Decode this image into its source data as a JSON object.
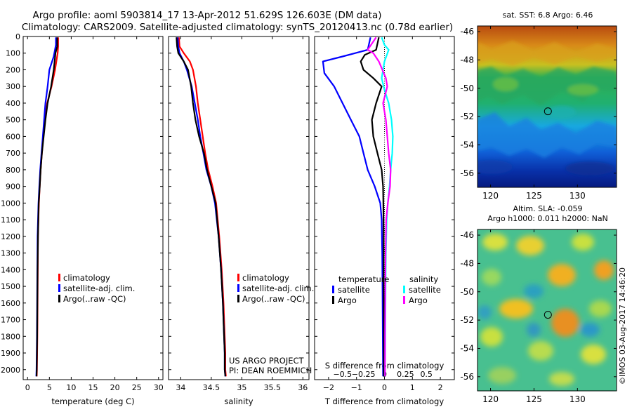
{
  "header": {
    "line1": "Argo profile: aoml 5903814_17 13-Apr-2012 51.629S 126.603E (DM data)",
    "line2": "Climatology: CARS2009. Satellite-adjusted climatology: synTS_20120413.nc (0.78d earlier)"
  },
  "colors": {
    "climatology": "#ff0000",
    "satellite": "#0000ff",
    "argo": "#000000",
    "sal_satellite": "#00ffff",
    "sal_argo": "#ff00ff"
  },
  "depth_axis": {
    "ticks": [
      0,
      100,
      200,
      300,
      400,
      500,
      600,
      700,
      800,
      900,
      1000,
      1100,
      1200,
      1300,
      1400,
      1500,
      1600,
      1700,
      1800,
      1900,
      2000
    ]
  },
  "chart_data": [
    {
      "type": "line",
      "id": "temperature",
      "xlabel": "temperature (deg C)",
      "xlim": [
        -1,
        31
      ],
      "ylim": [
        0,
        2060
      ],
      "xticks": [
        0,
        5,
        10,
        15,
        20,
        25,
        30
      ],
      "xtick_labels": [
        "0",
        "5",
        "10",
        "15",
        "20",
        "25",
        "30"
      ],
      "legend": {
        "position": "lower-left",
        "entries": [
          "climatology",
          "satellite-adj. clim.",
          "Argo(..raw -QC)"
        ]
      },
      "series": [
        {
          "name": "climatology",
          "color": "#ff0000",
          "x": [
            7.0,
            7.0,
            6.9,
            6.3,
            5.5,
            4.5,
            4.0,
            3.6,
            3.3,
            3.0,
            2.8,
            2.6,
            2.4,
            2.35,
            2.3,
            2.25,
            2.2,
            2.15,
            2.1
          ],
          "y": [
            5,
            60,
            100,
            200,
            300,
            400,
            500,
            600,
            700,
            800,
            900,
            1000,
            1200,
            1400,
            1600,
            1800,
            1900,
            2000,
            2040
          ]
        },
        {
          "name": "satellite-adj. clim.",
          "color": "#0000ff",
          "x": [
            6.5,
            6.5,
            6.0,
            5.0,
            4.6,
            4.1,
            3.8,
            3.5,
            3.2,
            2.9,
            2.7,
            2.5,
            2.3,
            2.25,
            2.2,
            2.15,
            2.1,
            2.05,
            2.0
          ],
          "y": [
            5,
            50,
            120,
            200,
            300,
            400,
            500,
            600,
            700,
            800,
            900,
            1000,
            1200,
            1400,
            1600,
            1800,
            1900,
            2000,
            2040
          ]
        },
        {
          "name": "Argo(..raw -QC)",
          "color": "#000000",
          "x": [
            6.8,
            6.8,
            6.4,
            6.0,
            5.4,
            4.6,
            4.1,
            3.7,
            3.3,
            3.0,
            2.8,
            2.55,
            2.4,
            2.3,
            2.25,
            2.2,
            2.15,
            2.1,
            2.05
          ],
          "y": [
            5,
            60,
            100,
            200,
            300,
            400,
            500,
            600,
            700,
            800,
            900,
            1000,
            1200,
            1400,
            1600,
            1800,
            1900,
            2000,
            2040
          ]
        }
      ]
    },
    {
      "type": "line",
      "id": "salinity",
      "xlabel": "salinity",
      "xlim": [
        33.8,
        36.1
      ],
      "ylim": [
        0,
        2060
      ],
      "xticks": [
        34,
        34.5,
        35,
        35.5,
        36
      ],
      "xtick_labels": [
        "34",
        "34.5",
        "35",
        "35.5",
        "36"
      ],
      "legend": {
        "position": "lower-center",
        "entries": [
          "climatology",
          "satellite-adj. clim.",
          "Argo(..raw -QC)"
        ]
      },
      "series": [
        {
          "name": "climatology",
          "color": "#ff0000",
          "x": [
            33.97,
            33.98,
            34.05,
            34.15,
            34.2,
            34.25,
            34.28,
            34.32,
            34.36,
            34.4,
            34.45,
            34.52,
            34.58,
            34.63,
            34.67,
            34.7,
            34.72,
            34.73,
            34.73,
            34.74
          ],
          "y": [
            5,
            60,
            100,
            150,
            200,
            300,
            400,
            500,
            600,
            700,
            800,
            900,
            1000,
            1200,
            1400,
            1600,
            1800,
            1900,
            2000,
            2040
          ]
        },
        {
          "name": "satellite-adj. clim.",
          "color": "#0000ff",
          "x": [
            33.95,
            33.96,
            33.98,
            34.05,
            34.1,
            34.18,
            34.23,
            34.28,
            34.32,
            34.37,
            34.42,
            34.5,
            34.56,
            34.62,
            34.66,
            34.69,
            34.71,
            34.72,
            34.72,
            34.73
          ],
          "y": [
            5,
            60,
            100,
            150,
            200,
            300,
            400,
            500,
            600,
            700,
            800,
            900,
            1000,
            1200,
            1400,
            1600,
            1800,
            1900,
            2000,
            2040
          ]
        },
        {
          "name": "Argo(..raw -QC)",
          "color": "#000000",
          "x": [
            33.93,
            33.94,
            33.96,
            34.05,
            34.12,
            34.17,
            34.2,
            34.24,
            34.3,
            34.38,
            34.43,
            34.5,
            34.57,
            34.62,
            34.66,
            34.69,
            34.71,
            34.72,
            34.72,
            34.73
          ],
          "y": [
            5,
            60,
            100,
            150,
            200,
            300,
            400,
            500,
            600,
            700,
            800,
            900,
            1000,
            1200,
            1400,
            1600,
            1800,
            1900,
            2000,
            2040
          ]
        }
      ],
      "annotations": [
        "US ARGO PROJECT",
        "PI: DEAN ROEMMICH"
      ]
    },
    {
      "type": "line",
      "id": "differences",
      "xlabel": "T difference from climatology",
      "x2label": "S difference from climatology",
      "xlim": [
        -2.5,
        2.5
      ],
      "ylim": [
        0,
        2060
      ],
      "xticks": [
        -2,
        -1,
        0,
        1,
        2
      ],
      "xtick_labels": [
        "−2",
        "−1",
        "0",
        "1",
        "2"
      ],
      "x2ticks": [
        -1.5,
        -0.75,
        0,
        0.75,
        1.5
      ],
      "x2tick_labels": [
        "−0.5",
        "−0.25",
        "0",
        "0.25",
        "0.5"
      ],
      "legend": {
        "position": "center",
        "temperature_title": "temperature",
        "salinity_title": "salinity",
        "temperature_entries": [
          "satellite",
          "Argo"
        ],
        "salinity_entries": [
          "satellite",
          "Argo"
        ]
      },
      "series": [
        {
          "name": "temperature satellite",
          "color": "#0000ff",
          "x": [
            -0.5,
            -0.6,
            -1.5,
            -2.2,
            -2.15,
            -1.8,
            -1.5,
            -1.2,
            -0.9,
            -0.75,
            -0.6,
            -0.35,
            -0.15,
            -0.1,
            -0.08,
            -0.07,
            -0.06,
            -0.05
          ],
          "y": [
            5,
            80,
            120,
            150,
            220,
            300,
            400,
            500,
            600,
            700,
            800,
            900,
            1000,
            1100,
            1300,
            1500,
            1800,
            2040
          ]
        },
        {
          "name": "temperature Argo",
          "color": "#000000",
          "x": [
            -0.2,
            -0.3,
            -0.7,
            -0.85,
            -0.75,
            -0.4,
            -0.1,
            -0.3,
            -0.45,
            -0.4,
            -0.25,
            -0.1,
            -0.05,
            -0.04,
            -0.03,
            -0.03,
            -0.02,
            -0.02
          ],
          "y": [
            5,
            80,
            110,
            150,
            200,
            250,
            300,
            400,
            500,
            600,
            700,
            800,
            900,
            1000,
            1200,
            1500,
            1800,
            2040
          ]
        },
        {
          "name": "salinity satellite",
          "color": "#00ffff",
          "x": [
            -0.1,
            0.0,
            0.15,
            0.0,
            -0.1,
            0.0,
            0.15,
            0.25,
            0.3,
            0.28,
            0.22,
            0.18,
            0.12,
            0.08,
            0.05,
            0.04,
            0.03,
            0.02
          ],
          "y": [
            5,
            50,
            80,
            150,
            250,
            320,
            400,
            500,
            600,
            700,
            800,
            900,
            1000,
            1100,
            1300,
            1500,
            1800,
            2040
          ]
        },
        {
          "name": "salinity Argo",
          "color": "#ff00ff",
          "x": [
            -0.3,
            -0.6,
            -0.4,
            -0.2,
            0.05,
            0.1,
            -0.05,
            0.05,
            0.1,
            0.15,
            0.22,
            0.2,
            0.12,
            0.06,
            0.04,
            0.03,
            0.02,
            0.02
          ],
          "y": [
            5,
            80,
            100,
            150,
            250,
            300,
            400,
            500,
            600,
            700,
            800,
            900,
            1000,
            1100,
            1300,
            1500,
            1800,
            2040
          ]
        }
      ]
    },
    {
      "type": "heatmap",
      "id": "sst_map",
      "title": "sat. SST: 6.8 Argo: 6.46",
      "xlim": [
        118.5,
        134.5
      ],
      "ylim": [
        -57.0,
        -45.6
      ],
      "xticks": [
        120,
        125,
        130
      ],
      "xtick_labels": [
        "120",
        "125",
        "130"
      ],
      "yticks": [
        -46,
        -48,
        -50,
        -52,
        -54,
        -56
      ],
      "ytick_labels": [
        "-46",
        "-48",
        "-50",
        "-52",
        "-54",
        "-56"
      ],
      "marker": {
        "lon": 126.603,
        "lat": -51.629
      }
    },
    {
      "type": "heatmap",
      "id": "sla_map",
      "title": "Altim. SLA: -0.059",
      "subtitle": "Argo h1000: 0.011 h2000: NaN",
      "xlim": [
        118.5,
        134.5
      ],
      "ylim": [
        -57.0,
        -45.6
      ],
      "xticks": [
        120,
        125,
        130
      ],
      "xtick_labels": [
        "120",
        "125",
        "130"
      ],
      "yticks": [
        -46,
        -48,
        -50,
        -52,
        -54,
        -56
      ],
      "ytick_labels": [
        "-46",
        "-48",
        "-50",
        "-52",
        "-54",
        "-56"
      ],
      "marker": {
        "lon": 126.603,
        "lat": -51.629
      }
    }
  ],
  "footer_stamp": "©IMOS 03-Aug-2017 14:46:20"
}
